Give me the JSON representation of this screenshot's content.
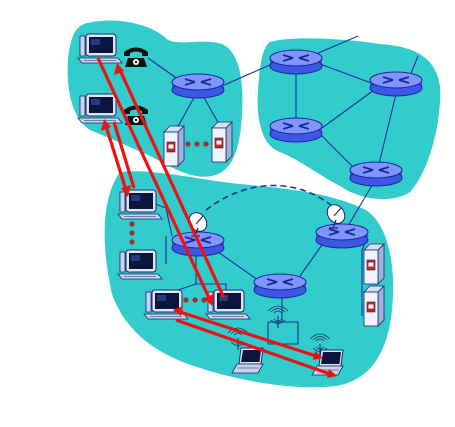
{
  "diagram": {
    "colors": {
      "region_fill": "#33cccc",
      "router_fill": "#6680ff",
      "router_stroke": "#1a2a99",
      "link": "#1a3399",
      "red_link": "#ee1111",
      "dot": "#993333"
    },
    "regions": [
      {
        "id": "home-network-region"
      },
      {
        "id": "isp-core-region"
      },
      {
        "id": "institutional-network-region"
      }
    ],
    "routers": [
      {
        "id": "home-gateway-router"
      },
      {
        "id": "core-router-top-left"
      },
      {
        "id": "core-router-top-right"
      },
      {
        "id": "core-router-mid-left"
      },
      {
        "id": "core-router-bottom-right"
      },
      {
        "id": "campus-router-left"
      },
      {
        "id": "campus-router-center"
      },
      {
        "id": "campus-router-right"
      }
    ],
    "hosts": [
      {
        "id": "home-desktop-1",
        "kind": "desktop"
      },
      {
        "id": "home-desktop-2",
        "kind": "desktop"
      },
      {
        "id": "campus-desktop-1",
        "kind": "desktop"
      },
      {
        "id": "campus-desktop-2",
        "kind": "desktop"
      },
      {
        "id": "campus-desktop-3",
        "kind": "desktop"
      },
      {
        "id": "campus-desktop-4",
        "kind": "desktop"
      },
      {
        "id": "laptop-wireless-1",
        "kind": "laptop"
      },
      {
        "id": "laptop-wireless-2",
        "kind": "laptop"
      }
    ],
    "icons": [
      "telephone-icon",
      "server-icon",
      "satellite-dish-icon",
      "wireless-base-station-icon",
      "router-icon",
      "desktop-computer-icon",
      "laptop-icon"
    ]
  }
}
